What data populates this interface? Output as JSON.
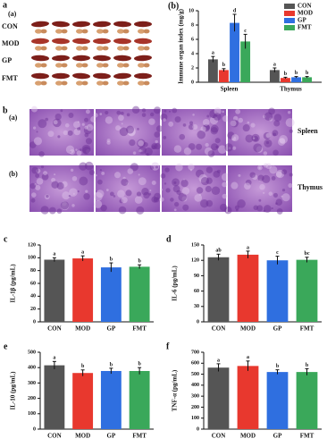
{
  "panel_a": {
    "label": "a",
    "sub_label": "(a)",
    "rows": [
      "CON",
      "MOD",
      "GP",
      "FMT"
    ]
  },
  "panel_b": {
    "label": "b",
    "rows": [
      {
        "label": "(a)",
        "organ": "Spleen"
      },
      {
        "label": "(b)",
        "organ": "Thymus"
      }
    ]
  },
  "chart_data": [
    {
      "type": "bar",
      "panel_label": "(b)",
      "ylabel": "Immune organ index (mg/g)",
      "categories": [
        "Spleen",
        "Thymus"
      ],
      "series": [
        {
          "name": "CON",
          "color": "#555555",
          "values": [
            3.2,
            1.7
          ],
          "errors": [
            0.4,
            0.3
          ],
          "letters": [
            "a",
            "a"
          ]
        },
        {
          "name": "MOD",
          "color": "#e8382e",
          "values": [
            1.7,
            0.6
          ],
          "errors": [
            0.2,
            0.1
          ],
          "letters": [
            "b",
            "b"
          ]
        },
        {
          "name": "GP",
          "color": "#2f6fe0",
          "values": [
            8.3,
            0.7
          ],
          "errors": [
            1.2,
            0.1
          ],
          "letters": [
            "d",
            "b"
          ]
        },
        {
          "name": "FMT",
          "color": "#3aa85a",
          "values": [
            5.7,
            0.7
          ],
          "errors": [
            1.0,
            0.1
          ],
          "letters": [
            "c",
            "b"
          ]
        }
      ],
      "ylim": [
        0,
        10
      ],
      "yticks": [
        0,
        2,
        4,
        6,
        8,
        10
      ]
    },
    {
      "type": "bar",
      "panel_label": "c",
      "ylabel": "IL-1β (pg/mL)",
      "categories": [
        "CON",
        "MOD",
        "GP",
        "FMT"
      ],
      "colors": [
        "#555555",
        "#e8382e",
        "#2f6fe0",
        "#3aa85a"
      ],
      "values": [
        97,
        99,
        85,
        86
      ],
      "errors": [
        3,
        4,
        7,
        3
      ],
      "letters": [
        "a",
        "a",
        "b",
        "b"
      ],
      "ylim": [
        0,
        120
      ],
      "yticks": [
        0,
        20,
        40,
        60,
        80,
        100,
        120
      ]
    },
    {
      "type": "bar",
      "panel_label": "d",
      "ylabel": "IL-6 (pg/mL)",
      "categories": [
        "CON",
        "MOD",
        "GP",
        "FMT"
      ],
      "colors": [
        "#555555",
        "#e8382e",
        "#2f6fe0",
        "#3aa85a"
      ],
      "values": [
        126,
        131,
        120,
        121
      ],
      "errors": [
        6,
        7,
        8,
        5
      ],
      "letters": [
        "ab",
        "a",
        "c",
        "bc"
      ],
      "ylim": [
        0,
        150
      ],
      "yticks": [
        0,
        30,
        60,
        90,
        120,
        150
      ]
    },
    {
      "type": "bar",
      "panel_label": "e",
      "ylabel": "IL-10 (pg/mL)",
      "categories": [
        "CON",
        "MOD",
        "GP",
        "FMT"
      ],
      "colors": [
        "#555555",
        "#e8382e",
        "#2f6fe0",
        "#3aa85a"
      ],
      "values": [
        415,
        365,
        378,
        378
      ],
      "errors": [
        25,
        20,
        18,
        22
      ],
      "letters": [
        "a",
        "b",
        "b",
        "b"
      ],
      "ylim": [
        0,
        500
      ],
      "yticks": [
        0,
        100,
        200,
        300,
        400,
        500
      ]
    },
    {
      "type": "bar",
      "panel_label": "f",
      "ylabel": "TNF-α (pg/mL)",
      "categories": [
        "CON",
        "MOD",
        "GP",
        "FMT"
      ],
      "colors": [
        "#555555",
        "#e8382e",
        "#2f6fe0",
        "#3aa85a"
      ],
      "values": [
        560,
        575,
        520,
        520
      ],
      "errors": [
        35,
        45,
        20,
        30
      ],
      "letters": [
        "a",
        "a",
        "b",
        "b"
      ],
      "ylim": [
        0,
        700
      ],
      "yticks": [
        0,
        100,
        200,
        300,
        400,
        500,
        600,
        700
      ]
    }
  ]
}
